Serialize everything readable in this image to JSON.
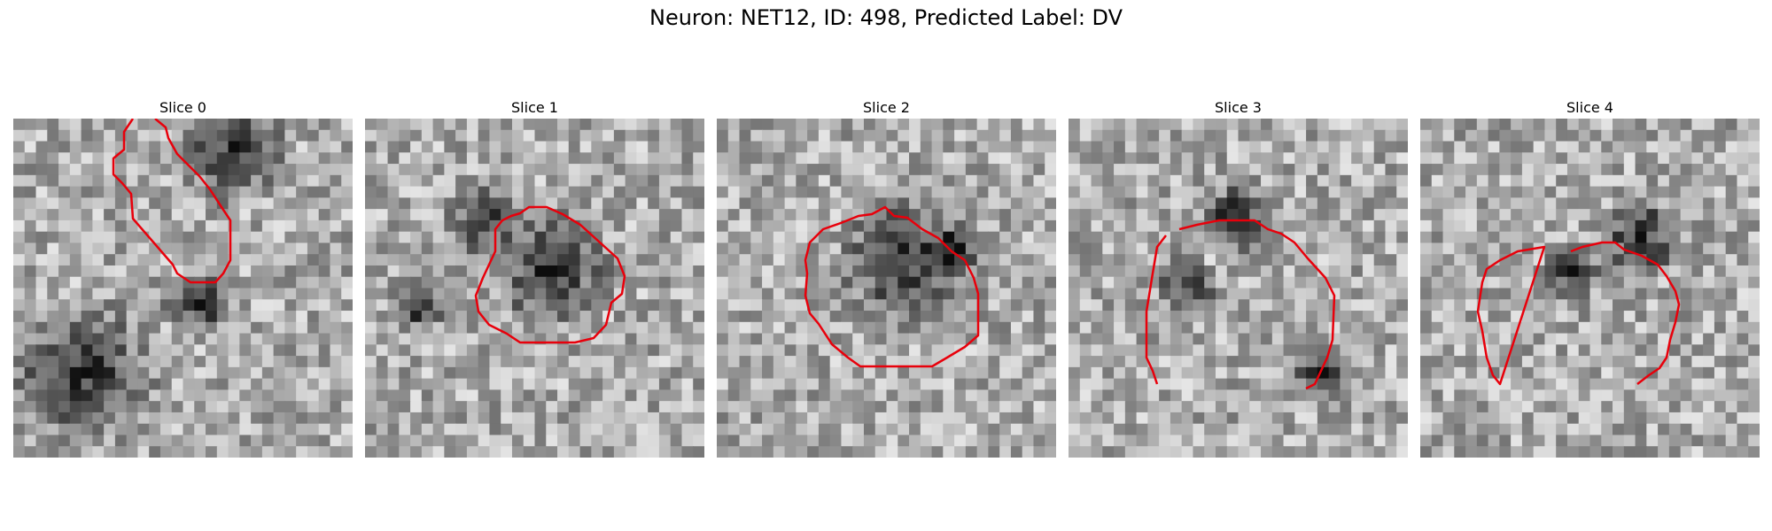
{
  "figure": {
    "title": "Neuron: NET12, ID: 498, Predicted Label: DV"
  },
  "panels": [
    {
      "title": "Slice 0",
      "seed": 11,
      "dark_blobs": [
        [
          0.65,
          0.1,
          0.18
        ],
        [
          0.2,
          0.75,
          0.25
        ],
        [
          0.55,
          0.55,
          0.12
        ]
      ],
      "contour_color": "#e8000b"
    },
    {
      "title": "Slice 1",
      "seed": 23,
      "dark_blobs": [
        [
          0.55,
          0.45,
          0.2
        ],
        [
          0.35,
          0.3,
          0.12
        ],
        [
          0.15,
          0.55,
          0.1
        ]
      ],
      "contour_color": "#e8000b"
    },
    {
      "title": "Slice 2",
      "seed": 37,
      "dark_blobs": [
        [
          0.55,
          0.42,
          0.22
        ],
        [
          0.7,
          0.4,
          0.1
        ]
      ],
      "contour_color": "#e8000b"
    },
    {
      "title": "Slice 3",
      "seed": 51,
      "dark_blobs": [
        [
          0.5,
          0.3,
          0.14
        ],
        [
          0.35,
          0.5,
          0.1
        ],
        [
          0.75,
          0.75,
          0.12
        ]
      ],
      "contour_color": "#e8000b"
    },
    {
      "title": "Slice 4",
      "seed": 67,
      "dark_blobs": [
        [
          0.65,
          0.35,
          0.14
        ],
        [
          0.45,
          0.45,
          0.1
        ]
      ],
      "contour_color": "#e8000b"
    }
  ]
}
